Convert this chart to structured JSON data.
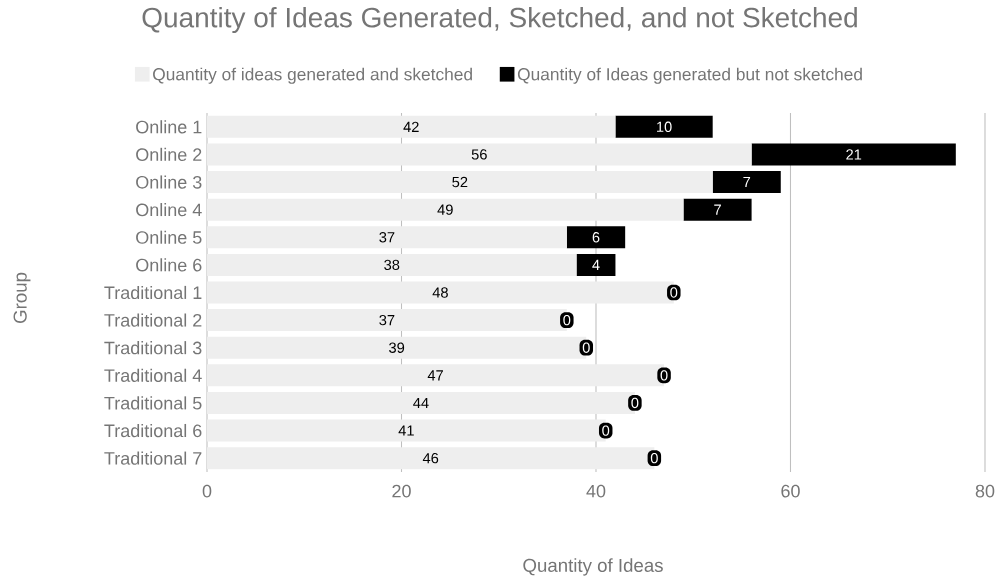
{
  "chart_data": {
    "type": "bar",
    "orientation": "horizontal",
    "stacked": true,
    "title": "Quantity of Ideas Generated, Sketched, and not Sketched",
    "xlabel": "Quantity of Ideas",
    "ylabel": "Group",
    "categories": [
      "Online 1",
      "Online 2",
      "Online 3",
      "Online 4",
      "Online 5",
      "Online 6",
      "Traditional 1",
      "Traditional 2",
      "Traditional 3",
      "Traditional 4",
      "Traditional 5",
      "Traditional 6",
      "Traditional 7"
    ],
    "series": [
      {
        "name": "Quantity of ideas generated and sketched",
        "color": "#eeeeee",
        "values": [
          42,
          56,
          52,
          49,
          37,
          38,
          48,
          37,
          39,
          47,
          44,
          41,
          46
        ]
      },
      {
        "name": "Quantity of Ideas generated but not sketched",
        "color": "#000000",
        "values": [
          10,
          21,
          7,
          7,
          6,
          4,
          0,
          0,
          0,
          0,
          0,
          0,
          0
        ]
      }
    ],
    "xlim": [
      0,
      80
    ],
    "xticks": [
      0,
      20,
      40,
      60,
      80
    ],
    "grid": "x",
    "legend": "top",
    "data_labels": true
  }
}
